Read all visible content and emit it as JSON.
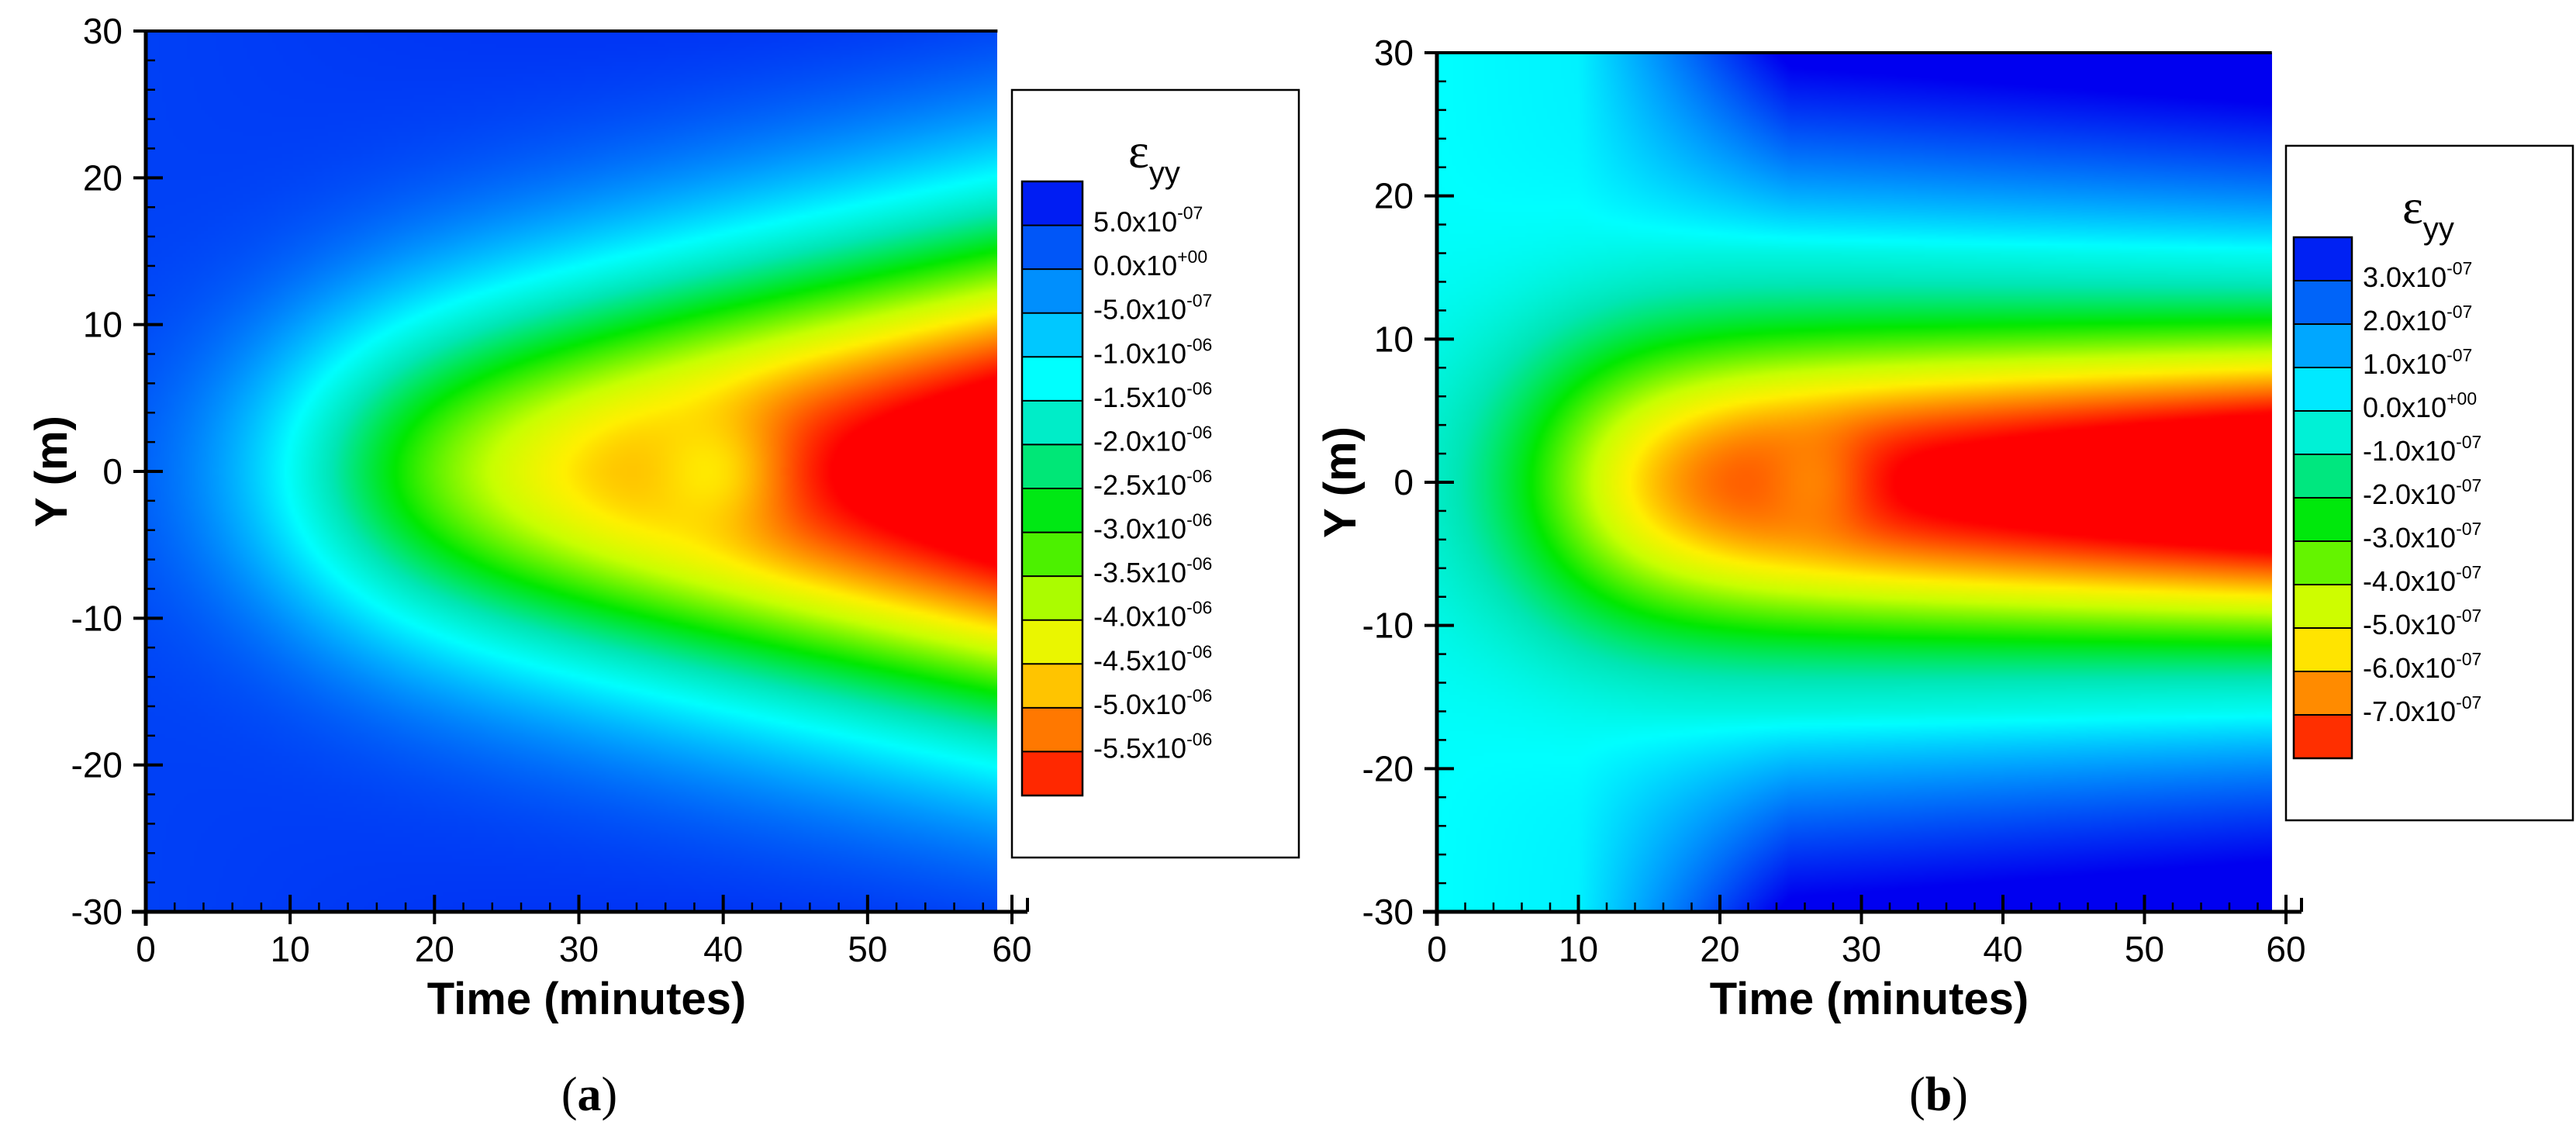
{
  "chart_data": [
    {
      "type": "heatmap",
      "panel_label": "a",
      "xlabel": "Time (minutes)",
      "ylabel": "Y (m)",
      "xlim": [
        0,
        60
      ],
      "ylim": [
        -30,
        30
      ],
      "x_ticks": [
        "0",
        "10",
        "20",
        "30",
        "40",
        "50",
        "60"
      ],
      "y_ticks": [
        "30",
        "20",
        "10",
        "0",
        "-10",
        "-20",
        "-30"
      ],
      "data_x_max": 59,
      "colorbar": {
        "title": "ε",
        "title_sub": "yy",
        "min": -5.75e-06,
        "max": 5.25e-07,
        "levels": [
          {
            "mantissa": "5.0x10",
            "exp": "-07"
          },
          {
            "mantissa": "0.0x10",
            "exp": "+00"
          },
          {
            "mantissa": "-5.0x10",
            "exp": "-07"
          },
          {
            "mantissa": "-1.0x10",
            "exp": "-06"
          },
          {
            "mantissa": "-1.5x10",
            "exp": "-06"
          },
          {
            "mantissa": "-2.0x10",
            "exp": "-06"
          },
          {
            "mantissa": "-2.5x10",
            "exp": "-06"
          },
          {
            "mantissa": "-3.0x10",
            "exp": "-06"
          },
          {
            "mantissa": "-3.5x10",
            "exp": "-06"
          },
          {
            "mantissa": "-4.0x10",
            "exp": "-06"
          },
          {
            "mantissa": "-4.5x10",
            "exp": "-06"
          },
          {
            "mantissa": "-5.0x10",
            "exp": "-06"
          },
          {
            "mantissa": "-5.5x10",
            "exp": "-06"
          }
        ]
      }
    },
    {
      "type": "heatmap",
      "panel_label": "b",
      "xlabel": "Time (minutes)",
      "ylabel": "Y (m)",
      "xlim": [
        0,
        60
      ],
      "ylim": [
        -30,
        30
      ],
      "x_ticks": [
        "0",
        "10",
        "20",
        "30",
        "40",
        "50",
        "60"
      ],
      "y_ticks": [
        "30",
        "20",
        "10",
        "0",
        "-10",
        "-20",
        "-30"
      ],
      "data_x_max": 59,
      "colorbar": {
        "title": "ε",
        "title_sub": "yy",
        "min": -7.5e-07,
        "max": 3.5e-07,
        "levels": [
          {
            "mantissa": "3.0x10",
            "exp": "-07"
          },
          {
            "mantissa": "2.0x10",
            "exp": "-07"
          },
          {
            "mantissa": "1.0x10",
            "exp": "-07"
          },
          {
            "mantissa": "0.0x10",
            "exp": "+00"
          },
          {
            "mantissa": "-1.0x10",
            "exp": "-07"
          },
          {
            "mantissa": "-2.0x10",
            "exp": "-07"
          },
          {
            "mantissa": "-3.0x10",
            "exp": "-07"
          },
          {
            "mantissa": "-4.0x10",
            "exp": "-07"
          },
          {
            "mantissa": "-5.0x10",
            "exp": "-07"
          },
          {
            "mantissa": "-6.0x10",
            "exp": "-07"
          },
          {
            "mantissa": "-7.0x10",
            "exp": "-07"
          }
        ]
      }
    }
  ]
}
